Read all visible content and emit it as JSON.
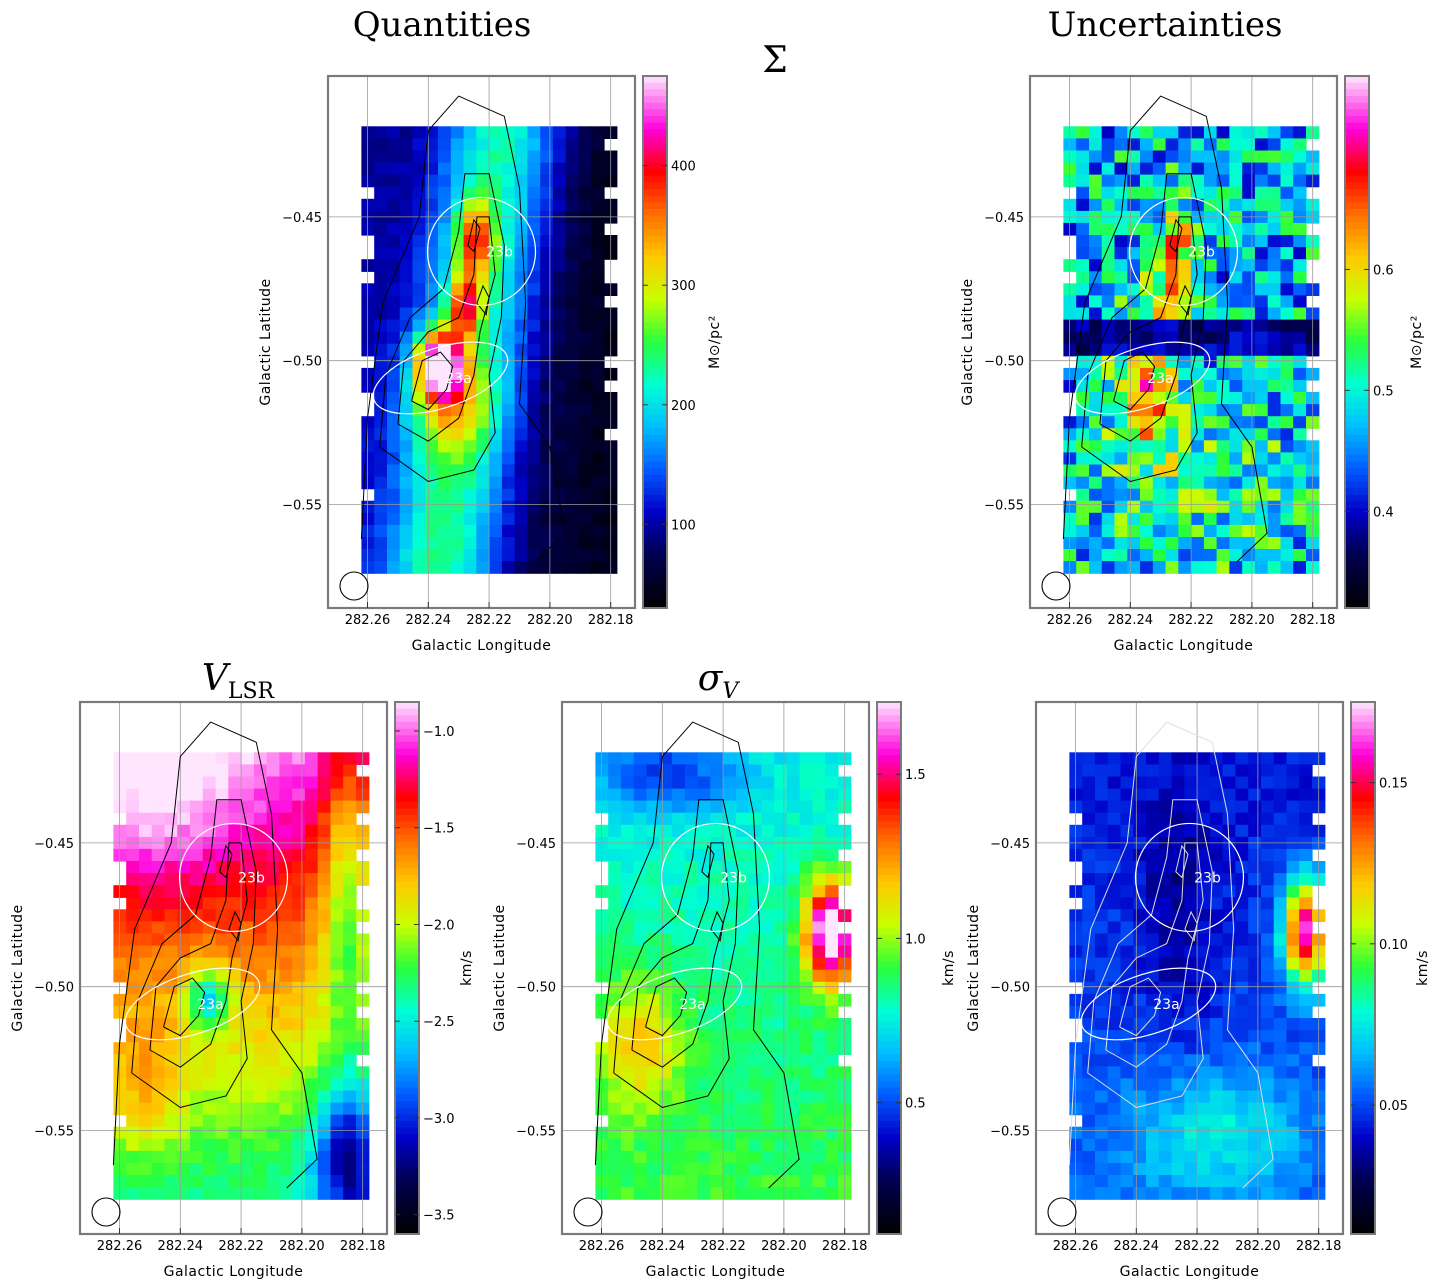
{
  "figure": {
    "column_titles": {
      "left": "Quantities",
      "right": "Uncertainties"
    }
  },
  "chart_data": [
    {
      "type": "heatmap",
      "id": "sigma",
      "title": "Σ",
      "column": "Quantities",
      "xlabel": "Galactic Longitude",
      "ylabel": "Galactic Latitude",
      "xticks": [
        "282.26",
        "282.24",
        "282.22",
        "282.20",
        "282.18"
      ],
      "xlim": [
        282.273,
        282.172
      ],
      "yticks": [
        "-0.45",
        "-0.50",
        "-0.55"
      ],
      "ylim": [
        -0.586,
        -0.401
      ],
      "grid": true,
      "colorbar": {
        "label": "M⊙/pc²",
        "range": [
          30,
          475
        ],
        "ticks": [
          "100",
          "200",
          "300",
          "400"
        ],
        "tick_values": [
          100,
          200,
          300,
          400
        ]
      },
      "regions": [
        {
          "label": "23b",
          "center": [
            282.2225,
            -0.462
          ],
          "shape": "circle"
        },
        {
          "label": "23a",
          "center": [
            282.236,
            -0.506
          ],
          "shape": "ellipse"
        }
      ],
      "contour_color": "#000000"
    },
    {
      "type": "heatmap",
      "id": "sigma_unc",
      "title": "",
      "column": "Uncertainties",
      "xlabel": "Galactic Longitude",
      "ylabel": "Galactic Latitude",
      "xticks": [
        "282.26",
        "282.24",
        "282.22",
        "282.20",
        "282.18"
      ],
      "xlim": [
        282.273,
        282.172
      ],
      "yticks": [
        "-0.45",
        "-0.50",
        "-0.55"
      ],
      "ylim": [
        -0.586,
        -0.401
      ],
      "grid": true,
      "colorbar": {
        "label": "M⊙/pc²",
        "range": [
          0.32,
          0.76
        ],
        "ticks": [
          "0.4",
          "0.5",
          "0.6"
        ],
        "tick_values": [
          0.4,
          0.5,
          0.6
        ]
      },
      "regions": [
        {
          "label": "23b",
          "center": [
            282.2225,
            -0.462
          ],
          "shape": "circle"
        },
        {
          "label": "23a",
          "center": [
            282.236,
            -0.506
          ],
          "shape": "ellipse"
        }
      ],
      "contour_color": "#000000"
    },
    {
      "type": "heatmap",
      "id": "vlsr",
      "title": "V",
      "title_subscript": "LSR",
      "column": "Quantities",
      "xlabel": "Galactic Longitude",
      "ylabel": "Galactic Latitude",
      "xticks": [
        "282.26",
        "282.24",
        "282.22",
        "282.20",
        "282.18"
      ],
      "xlim": [
        282.273,
        282.172
      ],
      "yticks": [
        "-0.45",
        "-0.50",
        "-0.55"
      ],
      "ylim": [
        -0.586,
        -0.401
      ],
      "grid": true,
      "colorbar": {
        "label": "km/s",
        "range": [
          -3.6,
          -0.85
        ],
        "ticks": [
          "-1.0",
          "-1.5",
          "-2.0",
          "-2.5",
          "-3.0",
          "-3.5"
        ],
        "tick_values": [
          -1.0,
          -1.5,
          -2.0,
          -2.5,
          -3.0,
          -3.5
        ]
      },
      "regions": [
        {
          "label": "23b",
          "center": [
            282.2225,
            -0.462
          ],
          "shape": "circle"
        },
        {
          "label": "23a",
          "center": [
            282.236,
            -0.506
          ],
          "shape": "ellipse"
        }
      ],
      "contour_color": "#000000"
    },
    {
      "type": "heatmap",
      "id": "sigmav",
      "title": "σ",
      "title_subscript": "V",
      "column": "Quantities",
      "xlabel": "Galactic Longitude",
      "ylabel": "Galactic Latitude",
      "xticks": [
        "282.26",
        "282.24",
        "282.22",
        "282.20",
        "282.18"
      ],
      "xlim": [
        282.273,
        282.172
      ],
      "yticks": [
        "-0.45",
        "-0.50",
        "-0.55"
      ],
      "ylim": [
        -0.586,
        -0.401
      ],
      "grid": true,
      "colorbar": {
        "label": "km/s",
        "range": [
          0.1,
          1.72
        ],
        "ticks": [
          "0.5",
          "1.0",
          "1.5"
        ],
        "tick_values": [
          0.5,
          1.0,
          1.5
        ]
      },
      "regions": [
        {
          "label": "23b",
          "center": [
            282.2225,
            -0.462
          ],
          "shape": "circle"
        },
        {
          "label": "23a",
          "center": [
            282.236,
            -0.506
          ],
          "shape": "ellipse"
        }
      ],
      "contour_color": "#000000"
    },
    {
      "type": "heatmap",
      "id": "sigmav_unc",
      "title": "",
      "column": "Uncertainties",
      "xlabel": "Galactic Longitude",
      "ylabel": "Galactic Latitude",
      "xticks": [
        "282.26",
        "282.24",
        "282.22",
        "282.20",
        "282.18"
      ],
      "xlim": [
        282.273,
        282.172
      ],
      "yticks": [
        "-0.45",
        "-0.50",
        "-0.55"
      ],
      "ylim": [
        -0.586,
        -0.401
      ],
      "grid": true,
      "colorbar": {
        "label": "km/s",
        "range": [
          0.01,
          0.175
        ],
        "ticks": [
          "0.05",
          "0.10",
          "0.15"
        ],
        "tick_values": [
          0.05,
          0.1,
          0.15
        ]
      },
      "regions": [
        {
          "label": "23b",
          "center": [
            282.2225,
            -0.462
          ],
          "shape": "circle"
        },
        {
          "label": "23a",
          "center": [
            282.236,
            -0.506
          ],
          "shape": "ellipse"
        }
      ],
      "contour_color": "#dddddd"
    }
  ]
}
